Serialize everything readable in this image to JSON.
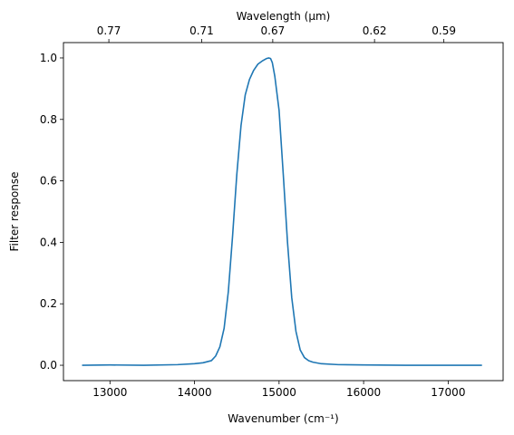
{
  "chart_data": {
    "type": "line",
    "xlabel": "Wavenumber (cm⁻¹)",
    "ylabel": "Filter response",
    "top_xlabel": "Wavelength (μm)",
    "xlim": [
      12450,
      17650
    ],
    "ylim": [
      -0.05,
      1.05
    ],
    "x_ticks": [
      13000,
      14000,
      15000,
      16000,
      17000
    ],
    "x_tick_labels": [
      "13000",
      "14000",
      "15000",
      "16000",
      "17000"
    ],
    "y_ticks": [
      0.0,
      0.2,
      0.4,
      0.6,
      0.8,
      1.0
    ],
    "y_tick_labels": [
      "0.0",
      "0.2",
      "0.4",
      "0.6",
      "0.8",
      "1.0"
    ],
    "top_ticks": [
      0.77,
      0.71,
      0.67,
      0.62,
      0.59
    ],
    "top_tick_labels": [
      "0.77",
      "0.71",
      "0.67",
      "0.62",
      "0.59"
    ],
    "grid": false,
    "series": [
      {
        "color": "#1f77b4",
        "x": [
          12670,
          13000,
          13400,
          13800,
          14000,
          14100,
          14200,
          14250,
          14300,
          14350,
          14400,
          14450,
          14500,
          14550,
          14600,
          14650,
          14700,
          14750,
          14800,
          14850,
          14880,
          14900,
          14920,
          14950,
          15000,
          15050,
          15100,
          15150,
          15200,
          15250,
          15300,
          15350,
          15400,
          15500,
          15700,
          16000,
          16500,
          17000,
          17400
        ],
        "y": [
          0.0,
          0.001,
          0.0,
          0.002,
          0.005,
          0.008,
          0.015,
          0.03,
          0.06,
          0.12,
          0.24,
          0.42,
          0.62,
          0.78,
          0.88,
          0.93,
          0.96,
          0.98,
          0.99,
          0.998,
          1.0,
          0.998,
          0.985,
          0.94,
          0.83,
          0.62,
          0.4,
          0.22,
          0.11,
          0.05,
          0.025,
          0.015,
          0.01,
          0.005,
          0.002,
          0.001,
          0.0,
          0.0,
          0.0
        ]
      }
    ]
  }
}
